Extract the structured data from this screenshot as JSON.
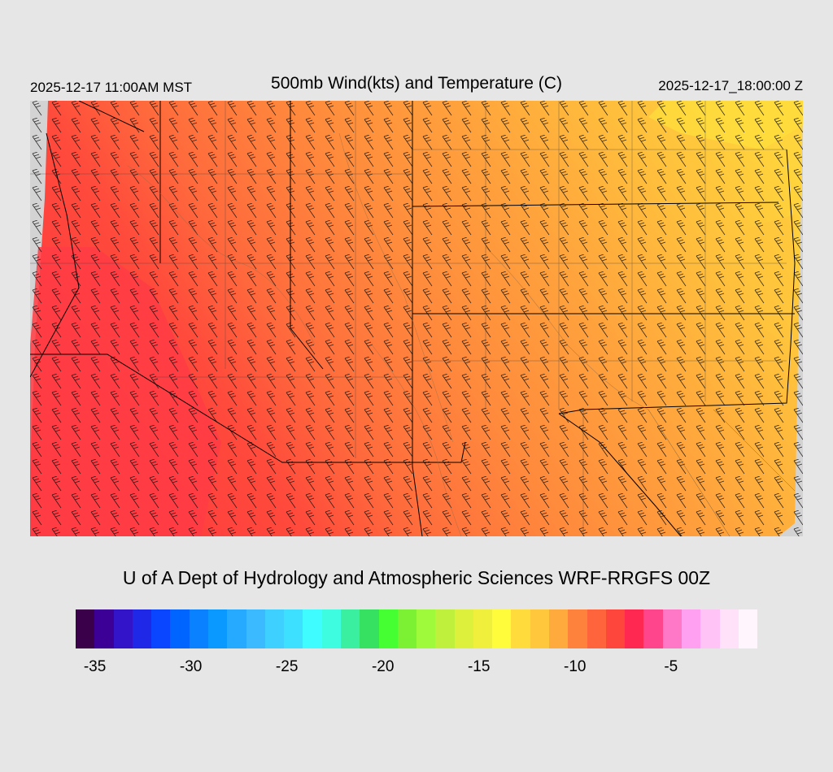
{
  "header": {
    "valid_local": "2025-12-17 11:00AM MST",
    "title": "500mb Wind(kts) and Temperature (C)",
    "valid_utc": "2025-12-17_18:00:00 Z"
  },
  "credit": "U of A Dept of Hydrology and Atmospheric Sciences WRF-RRGFS 00Z",
  "map": {
    "field": "500mb temperature (C)",
    "overlay": "wind barbs (kts), state and county boundaries, terrain contours",
    "temperature_range_c": [
      -12,
      -7
    ],
    "missing_color": "#d3d3d3"
  },
  "colorbar": {
    "colors": [
      "#3a0049",
      "#3c0096",
      "#3414c8",
      "#1e28e6",
      "#0a46ff",
      "#0064ff",
      "#0a82ff",
      "#0a9aff",
      "#26aaff",
      "#3cbaff",
      "#3ed0ff",
      "#3ee0ff",
      "#3efcff",
      "#3efce0",
      "#3af0a0",
      "#36e060",
      "#46ff32",
      "#7cf032",
      "#a0fa3c",
      "#bef03c",
      "#dcf03c",
      "#f0f03c",
      "#fffc3c",
      "#ffdc3c",
      "#ffc83c",
      "#ffaa3c",
      "#ff823c",
      "#ff643c",
      "#ff463c",
      "#ff2850",
      "#ff468c",
      "#ff78c8",
      "#ffa0f0",
      "#ffc3f5",
      "#ffe1fa",
      "#fff5fd"
    ],
    "tick_labels": [
      "-35",
      "-30",
      "-25",
      "-20",
      "-15",
      "-10",
      "-5"
    ],
    "tick_values": [
      -35,
      -30,
      -25,
      -20,
      -15,
      -10,
      -5
    ],
    "min": -36,
    "max": -0.5
  },
  "colors": {
    "background": "#e6e6e6",
    "warm_red": "#ff4040",
    "orange": "#ff8a3c",
    "yellow": "#ffc83c"
  }
}
